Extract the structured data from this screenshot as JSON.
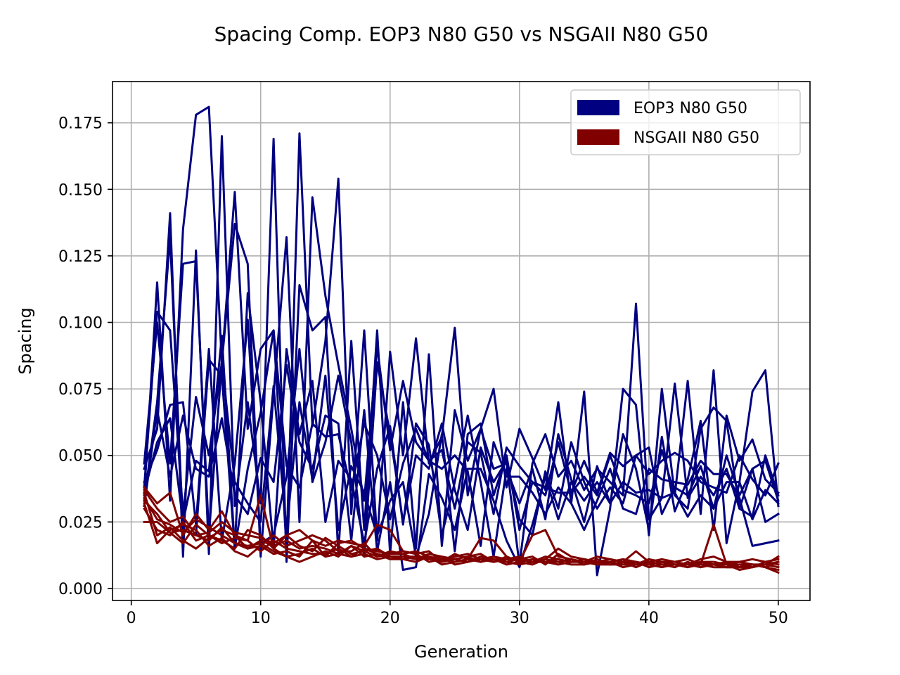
{
  "chart_data": {
    "type": "line",
    "title": "Spacing Comp. EOP3 N80 G50 vs NSGAII N80 G50",
    "xlabel": "Generation",
    "ylabel": "Spacing",
    "xlim": [
      -1.45,
      52.45
    ],
    "ylim": [
      -0.0045,
      0.1905
    ],
    "xticks": [
      0,
      10,
      20,
      30,
      40,
      50
    ],
    "xtick_labels": [
      "0",
      "10",
      "20",
      "30",
      "40",
      "50"
    ],
    "yticks": [
      0.0,
      0.025,
      0.05,
      0.075,
      0.1,
      0.125,
      0.15,
      0.175
    ],
    "ytick_labels": [
      "0.000",
      "0.025",
      "0.050",
      "0.075",
      "0.100",
      "0.125",
      "0.150",
      "0.175"
    ],
    "grid": true,
    "legend_position": "top-right",
    "legend": [
      {
        "label": "EOP3 N80 G50",
        "color": "#000080"
      },
      {
        "label": "NSGAII N80 G50",
        "color": "#800000"
      }
    ],
    "x": [
      1,
      2,
      3,
      4,
      5,
      6,
      7,
      8,
      9,
      10,
      11,
      12,
      13,
      14,
      15,
      16,
      17,
      18,
      19,
      20,
      21,
      22,
      23,
      24,
      25,
      26,
      27,
      28,
      29,
      30,
      31,
      32,
      33,
      34,
      35,
      36,
      37,
      38,
      39,
      40,
      41,
      42,
      43,
      44,
      45,
      46,
      47,
      48,
      49,
      50
    ],
    "series": [
      {
        "group": "EOP3 N80 G50",
        "color": "#000080",
        "values": [
          0.035,
          0.115,
          0.033,
          0.135,
          0.178,
          0.181,
          0.085,
          0.149,
          0.06,
          0.09,
          0.097,
          0.015,
          0.171,
          0.061,
          0.093,
          0.154,
          0.028,
          0.097,
          0.018,
          0.089,
          0.05,
          0.094,
          0.047,
          0.057,
          0.098,
          0.035,
          0.06,
          0.075,
          0.038,
          0.06,
          0.049,
          0.037,
          0.07,
          0.032,
          0.074,
          0.005,
          0.03,
          0.075,
          0.069,
          0.02,
          0.075,
          0.035,
          0.078,
          0.028,
          0.082,
          0.017,
          0.04,
          0.074,
          0.082,
          0.031
        ]
      },
      {
        "group": "EOP3 N80 G50",
        "color": "#000080",
        "values": [
          0.045,
          0.06,
          0.141,
          0.012,
          0.127,
          0.013,
          0.17,
          0.031,
          0.07,
          0.032,
          0.169,
          0.01,
          0.114,
          0.097,
          0.102,
          0.013,
          0.093,
          0.022,
          0.097,
          0.013,
          0.07,
          0.015,
          0.088,
          0.016,
          0.067,
          0.048,
          0.06,
          0.045,
          0.047,
          0.009,
          0.047,
          0.058,
          0.042,
          0.048,
          0.037,
          0.045,
          0.04,
          0.035,
          0.107,
          0.026,
          0.034,
          0.077,
          0.034,
          0.042,
          0.035,
          0.045,
          0.03,
          0.027,
          0.05,
          0.035
        ]
      },
      {
        "group": "EOP3 N80 G50",
        "color": "#000080",
        "values": [
          0.038,
          0.104,
          0.097,
          0.028,
          0.072,
          0.05,
          0.085,
          0.137,
          0.122,
          0.012,
          0.073,
          0.132,
          0.025,
          0.147,
          0.11,
          0.084,
          0.06,
          0.033,
          0.091,
          0.052,
          0.078,
          0.055,
          0.048,
          0.052,
          0.03,
          0.055,
          0.051,
          0.028,
          0.053,
          0.046,
          0.04,
          0.035,
          0.055,
          0.036,
          0.048,
          0.036,
          0.051,
          0.046,
          0.05,
          0.043,
          0.048,
          0.051,
          0.048,
          0.04,
          0.038,
          0.036,
          0.05,
          0.041,
          0.035,
          0.047
        ]
      },
      {
        "group": "EOP3 N80 G50",
        "color": "#000080",
        "values": [
          0.033,
          0.07,
          0.132,
          0.022,
          0.02,
          0.086,
          0.08,
          0.015,
          0.111,
          0.07,
          0.015,
          0.09,
          0.058,
          0.078,
          0.025,
          0.048,
          0.041,
          0.017,
          0.045,
          0.061,
          0.024,
          0.062,
          0.054,
          0.02,
          0.04,
          0.065,
          0.04,
          0.012,
          0.045,
          0.032,
          0.045,
          0.026,
          0.058,
          0.041,
          0.025,
          0.046,
          0.032,
          0.058,
          0.045,
          0.022,
          0.057,
          0.029,
          0.041,
          0.063,
          0.022,
          0.065,
          0.048,
          0.056,
          0.041,
          0.036
        ]
      },
      {
        "group": "EOP3 N80 G50",
        "color": "#000080",
        "values": [
          0.04,
          0.052,
          0.069,
          0.07,
          0.024,
          0.09,
          0.018,
          0.047,
          0.101,
          0.017,
          0.02,
          0.042,
          0.09,
          0.04,
          0.055,
          0.08,
          0.055,
          0.012,
          0.085,
          0.058,
          0.025,
          0.05,
          0.045,
          0.062,
          0.037,
          0.022,
          0.053,
          0.04,
          0.048,
          0.026,
          0.02,
          0.044,
          0.03,
          0.055,
          0.04,
          0.03,
          0.038,
          0.032,
          0.05,
          0.053,
          0.028,
          0.038,
          0.035,
          0.046,
          0.03,
          0.05,
          0.035,
          0.045,
          0.048,
          0.033
        ]
      },
      {
        "group": "EOP3 N80 G50",
        "color": "#000080",
        "values": [
          0.047,
          0.1,
          0.047,
          0.122,
          0.123,
          0.02,
          0.085,
          0.04,
          0.032,
          0.025,
          0.076,
          0.022,
          0.07,
          0.041,
          0.08,
          0.022,
          0.046,
          0.036,
          0.02,
          0.033,
          0.04,
          0.012,
          0.028,
          0.058,
          0.014,
          0.058,
          0.062,
          0.035,
          0.05,
          0.022,
          0.04,
          0.038,
          0.036,
          0.036,
          0.042,
          0.035,
          0.05,
          0.037,
          0.035,
          0.032,
          0.052,
          0.035,
          0.03,
          0.06,
          0.068,
          0.063,
          0.03,
          0.045,
          0.025,
          0.028
        ]
      },
      {
        "group": "EOP3 N80 G50",
        "color": "#000080",
        "values": [
          0.036,
          0.055,
          0.064,
          0.025,
          0.048,
          0.044,
          0.095,
          0.015,
          0.045,
          0.066,
          0.097,
          0.046,
          0.038,
          0.062,
          0.057,
          0.058,
          0.037,
          0.062,
          0.05,
          0.026,
          0.047,
          0.06,
          0.048,
          0.045,
          0.05,
          0.044,
          0.016,
          0.055,
          0.042,
          0.042,
          0.036,
          0.028,
          0.038,
          0.032,
          0.022,
          0.033,
          0.045,
          0.03,
          0.028,
          0.045,
          0.041,
          0.04,
          0.039,
          0.048,
          0.043,
          0.043,
          0.034,
          0.016,
          0.017,
          0.018
        ]
      },
      {
        "group": "EOP3 N80 G50",
        "color": "#000080",
        "values": [
          0.031,
          0.067,
          0.042,
          0.065,
          0.045,
          0.042,
          0.064,
          0.035,
          0.028,
          0.049,
          0.04,
          0.084,
          0.055,
          0.045,
          0.065,
          0.062,
          0.018,
          0.067,
          0.014,
          0.04,
          0.007,
          0.008,
          0.043,
          0.034,
          0.022,
          0.045,
          0.045,
          0.033,
          0.018,
          0.008,
          0.024,
          0.042,
          0.026,
          0.04,
          0.033,
          0.04,
          0.032,
          0.04,
          0.036,
          0.037,
          0.034,
          0.036,
          0.027,
          0.035,
          0.03,
          0.04,
          0.04,
          0.026,
          0.037,
          0.032
        ]
      },
      {
        "group": "NSGAII N80 G50",
        "color": "#800000",
        "values": [
          0.025,
          0.025,
          0.021,
          0.017,
          0.024,
          0.02,
          0.018,
          0.015,
          0.022,
          0.02,
          0.015,
          0.012,
          0.013,
          0.015,
          0.012,
          0.017,
          0.018,
          0.015,
          0.014,
          0.013,
          0.013,
          0.014,
          0.012,
          0.011,
          0.012,
          0.013,
          0.011,
          0.012,
          0.011,
          0.012,
          0.01,
          0.012,
          0.011,
          0.01,
          0.011,
          0.01,
          0.009,
          0.01,
          0.009,
          0.011,
          0.01,
          0.009,
          0.009,
          0.01,
          0.009,
          0.01,
          0.008,
          0.008,
          0.009,
          0.008
        ]
      },
      {
        "group": "NSGAII N80 G50",
        "color": "#800000",
        "values": [
          0.038,
          0.032,
          0.036,
          0.02,
          0.028,
          0.022,
          0.029,
          0.02,
          0.018,
          0.035,
          0.015,
          0.02,
          0.022,
          0.018,
          0.016,
          0.018,
          0.017,
          0.016,
          0.024,
          0.022,
          0.014,
          0.013,
          0.014,
          0.01,
          0.013,
          0.011,
          0.019,
          0.018,
          0.012,
          0.01,
          0.02,
          0.022,
          0.012,
          0.011,
          0.01,
          0.012,
          0.011,
          0.01,
          0.014,
          0.01,
          0.011,
          0.01,
          0.011,
          0.009,
          0.024,
          0.009,
          0.01,
          0.009,
          0.009,
          0.012
        ]
      },
      {
        "group": "NSGAII N80 G50",
        "color": "#800000",
        "values": [
          0.037,
          0.03,
          0.025,
          0.027,
          0.02,
          0.021,
          0.025,
          0.021,
          0.02,
          0.019,
          0.017,
          0.02,
          0.016,
          0.014,
          0.019,
          0.016,
          0.013,
          0.014,
          0.015,
          0.012,
          0.012,
          0.011,
          0.013,
          0.012,
          0.011,
          0.012,
          0.01,
          0.012,
          0.01,
          0.011,
          0.01,
          0.011,
          0.015,
          0.012,
          0.011,
          0.01,
          0.011,
          0.01,
          0.01,
          0.009,
          0.01,
          0.01,
          0.009,
          0.011,
          0.012,
          0.01,
          0.01,
          0.011,
          0.01,
          0.009
        ]
      },
      {
        "group": "NSGAII N80 G50",
        "color": "#800000",
        "values": [
          0.033,
          0.028,
          0.021,
          0.022,
          0.02,
          0.018,
          0.023,
          0.017,
          0.015,
          0.018,
          0.016,
          0.018,
          0.015,
          0.016,
          0.015,
          0.013,
          0.016,
          0.014,
          0.012,
          0.014,
          0.013,
          0.011,
          0.012,
          0.01,
          0.011,
          0.01,
          0.011,
          0.01,
          0.012,
          0.01,
          0.011,
          0.01,
          0.01,
          0.011,
          0.009,
          0.01,
          0.01,
          0.009,
          0.01,
          0.008,
          0.009,
          0.009,
          0.009,
          0.008,
          0.009,
          0.008,
          0.009,
          0.009,
          0.008,
          0.007
        ]
      },
      {
        "group": "NSGAII N80 G50",
        "color": "#800000",
        "values": [
          0.03,
          0.022,
          0.02,
          0.025,
          0.018,
          0.02,
          0.017,
          0.019,
          0.018,
          0.014,
          0.018,
          0.015,
          0.014,
          0.013,
          0.013,
          0.015,
          0.012,
          0.013,
          0.011,
          0.012,
          0.012,
          0.012,
          0.011,
          0.011,
          0.01,
          0.011,
          0.01,
          0.011,
          0.01,
          0.009,
          0.01,
          0.01,
          0.009,
          0.01,
          0.01,
          0.009,
          0.009,
          0.009,
          0.009,
          0.009,
          0.008,
          0.009,
          0.008,
          0.009,
          0.008,
          0.008,
          0.008,
          0.009,
          0.008,
          0.006
        ]
      },
      {
        "group": "NSGAII N80 G50",
        "color": "#800000",
        "values": [
          0.034,
          0.026,
          0.024,
          0.021,
          0.026,
          0.023,
          0.02,
          0.017,
          0.016,
          0.017,
          0.014,
          0.012,
          0.01,
          0.012,
          0.014,
          0.012,
          0.016,
          0.012,
          0.013,
          0.011,
          0.011,
          0.012,
          0.011,
          0.012,
          0.009,
          0.01,
          0.012,
          0.011,
          0.009,
          0.01,
          0.009,
          0.011,
          0.01,
          0.009,
          0.009,
          0.011,
          0.009,
          0.01,
          0.008,
          0.01,
          0.009,
          0.008,
          0.01,
          0.008,
          0.009,
          0.009,
          0.007,
          0.008,
          0.009,
          0.01
        ]
      },
      {
        "group": "NSGAII N80 G50",
        "color": "#800000",
        "values": [
          0.036,
          0.02,
          0.023,
          0.018,
          0.015,
          0.019,
          0.022,
          0.02,
          0.015,
          0.016,
          0.02,
          0.016,
          0.018,
          0.02,
          0.018,
          0.014,
          0.014,
          0.017,
          0.012,
          0.013,
          0.014,
          0.013,
          0.01,
          0.011,
          0.011,
          0.012,
          0.013,
          0.01,
          0.011,
          0.011,
          0.012,
          0.009,
          0.013,
          0.01,
          0.01,
          0.009,
          0.01,
          0.011,
          0.01,
          0.009,
          0.01,
          0.009,
          0.008,
          0.01,
          0.01,
          0.009,
          0.009,
          0.008,
          0.01,
          0.011
        ]
      },
      {
        "group": "NSGAII N80 G50",
        "color": "#800000",
        "values": [
          0.032,
          0.017,
          0.022,
          0.024,
          0.022,
          0.016,
          0.019,
          0.014,
          0.012,
          0.016,
          0.013,
          0.014,
          0.012,
          0.018,
          0.012,
          0.013,
          0.012,
          0.015,
          0.013,
          0.012,
          0.011,
          0.01,
          0.012,
          0.009,
          0.01,
          0.011,
          0.011,
          0.01,
          0.011,
          0.011,
          0.01,
          0.01,
          0.011,
          0.01,
          0.011,
          0.009,
          0.01,
          0.008,
          0.009,
          0.01,
          0.009,
          0.009,
          0.009,
          0.009,
          0.009,
          0.008,
          0.008,
          0.009,
          0.008,
          0.01
        ]
      }
    ]
  }
}
